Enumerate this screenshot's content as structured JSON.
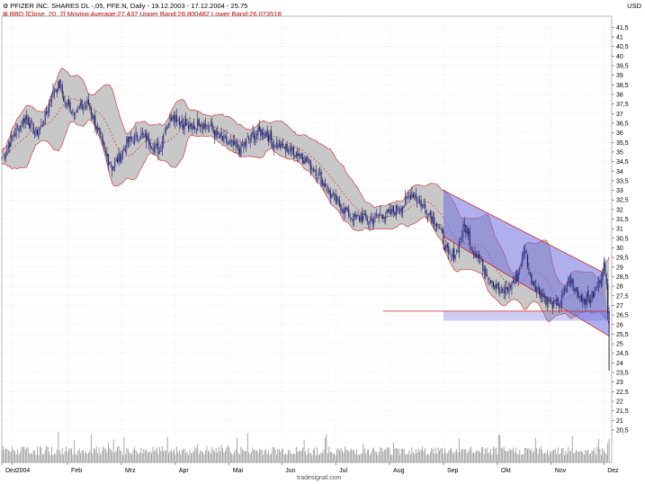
{
  "header": {
    "title": "PFIZER INC. SHARES DL -,05, PFE.N, Daily - 19.12.2003 - 17.12.2004 - 25.75",
    "indicator": "BBD [Close, 20, 2] Moving Average:27.437 Upper Band:28.800482 Lower Band:26.073518",
    "currency": "USD",
    "logo": "tradesignal.com"
  },
  "colors": {
    "band_fill": "#c8c8c8",
    "band_line": "#d02020",
    "candle_up": "#4040a0",
    "candle_down": "#202060",
    "channel_fill": "#7070e0",
    "volume": "#909090"
  },
  "chart_data": {
    "type": "candlestick",
    "ylim": [
      20.5,
      41.8
    ],
    "y_ticks": [
      "41,5",
      "41",
      "40,5",
      "40",
      "39,5",
      "39",
      "38,5",
      "38",
      "37,5",
      "37",
      "36,5",
      "36",
      "35,5",
      "35",
      "34,5",
      "34",
      "33,5",
      "33",
      "32,5",
      "32",
      "31,5",
      "31",
      "30,5",
      "30",
      "29,5",
      "29",
      "28,5",
      "28",
      "27,5",
      "27",
      "26,5",
      "26",
      "25,5",
      "25",
      "24,5",
      "24",
      "23,5",
      "23",
      "22,5",
      "22",
      "21,5",
      "21",
      "20,5"
    ],
    "x_labels": [
      "Dez",
      "2004",
      "Feb",
      "Mrz",
      "Apr",
      "Mai",
      "Jun",
      "Jul",
      "Aug",
      "Sep",
      "Okt",
      "Nov",
      "Dez"
    ],
    "months_start_day": [
      0,
      8,
      50,
      91,
      132,
      173,
      213,
      254,
      295,
      336,
      377,
      418,
      458
    ],
    "last_close": 25.75,
    "indicator": {
      "name": "BBD",
      "period": 20,
      "stddev": 2,
      "moving_average": 27.437,
      "upper_band": 28.800482,
      "lower_band": 26.073518
    },
    "close_path": [
      [
        0,
        34.7
      ],
      [
        10,
        36.0
      ],
      [
        18,
        36.8
      ],
      [
        26,
        36.0
      ],
      [
        30,
        36.3
      ],
      [
        34,
        37.0
      ],
      [
        38,
        38.0
      ],
      [
        44,
        38.5
      ],
      [
        48,
        37.6
      ],
      [
        54,
        37.2
      ],
      [
        60,
        37.3
      ],
      [
        66,
        37.5
      ],
      [
        72,
        36.3
      ],
      [
        78,
        35.0
      ],
      [
        84,
        34.2
      ],
      [
        90,
        34.8
      ],
      [
        96,
        35.5
      ],
      [
        104,
        35.9
      ],
      [
        112,
        35.6
      ],
      [
        120,
        35.0
      ],
      [
        124,
        36.3
      ],
      [
        130,
        37.0
      ],
      [
        136,
        36.6
      ],
      [
        144,
        36.2
      ],
      [
        150,
        36.6
      ],
      [
        158,
        36.3
      ],
      [
        164,
        35.8
      ],
      [
        172,
        35.5
      ],
      [
        180,
        35.1
      ],
      [
        186,
        35.5
      ],
      [
        192,
        35.9
      ],
      [
        200,
        36.1
      ],
      [
        206,
        35.5
      ],
      [
        212,
        35.3
      ],
      [
        218,
        35.2
      ],
      [
        224,
        35.0
      ],
      [
        232,
        34.5
      ],
      [
        238,
        34.1
      ],
      [
        244,
        33.5
      ],
      [
        250,
        32.8
      ],
      [
        256,
        32.3
      ],
      [
        262,
        31.9
      ],
      [
        268,
        31.5
      ],
      [
        274,
        31.6
      ],
      [
        280,
        31.4
      ],
      [
        288,
        31.8
      ],
      [
        294,
        31.7
      ],
      [
        300,
        32.0
      ],
      [
        306,
        32.3
      ],
      [
        312,
        32.9
      ],
      [
        318,
        32.4
      ],
      [
        324,
        31.9
      ],
      [
        330,
        31.4
      ],
      [
        336,
        30.4
      ],
      [
        340,
        29.5
      ],
      [
        346,
        29.8
      ],
      [
        352,
        31.2
      ],
      [
        358,
        30.0
      ],
      [
        364,
        29.3
      ],
      [
        370,
        28.6
      ],
      [
        376,
        28.0
      ],
      [
        380,
        27.6
      ],
      [
        386,
        28.0
      ],
      [
        392,
        28.5
      ],
      [
        398,
        30.0
      ],
      [
        402,
        28.5
      ],
      [
        408,
        27.8
      ],
      [
        414,
        27.3
      ],
      [
        420,
        27.0
      ],
      [
        426,
        27.3
      ],
      [
        432,
        28.4
      ],
      [
        436,
        27.8
      ],
      [
        442,
        27.4
      ],
      [
        448,
        27.3
      ],
      [
        452,
        27.8
      ],
      [
        456,
        28.6
      ],
      [
        458,
        29.1
      ],
      [
        460,
        28.0
      ],
      [
        462,
        25.75
      ]
    ],
    "channel": {
      "upper": [
        [
          336,
          33.0
        ],
        [
          458,
          28.7
        ]
      ],
      "lower": [
        [
          336,
          30.6
        ],
        [
          462,
          25.4
        ]
      ]
    },
    "support_line": {
      "value": 26.7,
      "from_day": 290,
      "to_day": 460
    },
    "support_fill": {
      "from_day": 336,
      "to_day": 462,
      "top": 26.7,
      "bottom": 26.2
    }
  }
}
